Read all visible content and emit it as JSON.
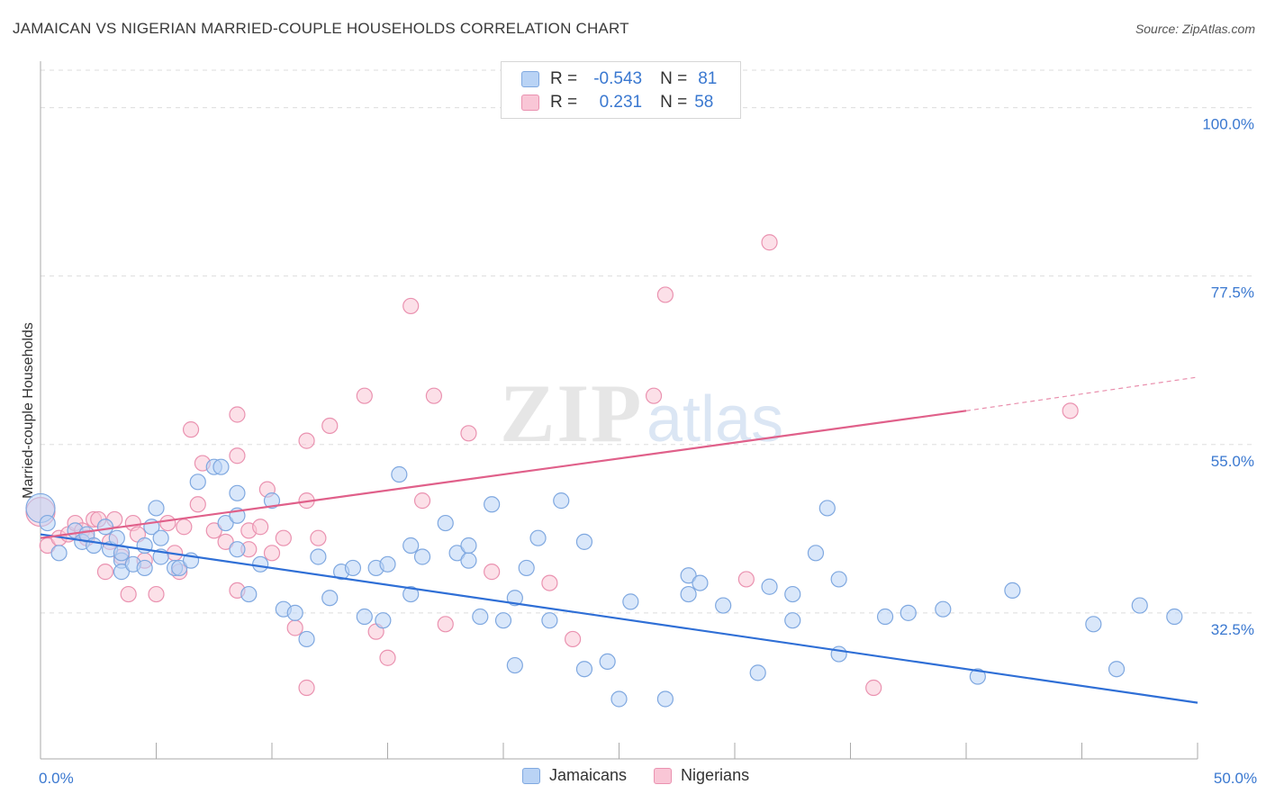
{
  "header": {
    "title": "JAMAICAN VS NIGERIAN MARRIED-COUPLE HOUSEHOLDS CORRELATION CHART",
    "source": "Source: ZipAtlas.com"
  },
  "watermark": {
    "zip": "ZIP",
    "atlas": "atlas"
  },
  "legend": {
    "r_label": "R =",
    "n_label": "N =",
    "rows": [
      {
        "r": "-0.543",
        "n": "81"
      },
      {
        "r": "0.231",
        "n": "58"
      }
    ]
  },
  "bottom_legend": {
    "items": [
      "Jamaicans",
      "Nigerians"
    ]
  },
  "colors": {
    "blue_fill": "#b9d3f5",
    "blue_stroke": "#7fa8e0",
    "blue_line": "#2f6fd6",
    "pink_fill": "#f9c6d6",
    "pink_stroke": "#ea92b0",
    "pink_line": "#e0608a",
    "tick_text": "#3a78d0",
    "grid": "#dddddd"
  },
  "chart_data": {
    "type": "scatter",
    "title": "JAMAICAN VS NIGERIAN MARRIED-COUPLE HOUSEHOLDS CORRELATION CHART",
    "xlabel": "",
    "ylabel": "Married-couple Households",
    "xlim": [
      0,
      50
    ],
    "ylim": [
      13,
      105
    ],
    "x_tick_labels": [
      {
        "value": 0,
        "label": "0.0%"
      },
      {
        "value": 50,
        "label": "50.0%"
      }
    ],
    "y_ticks": [
      {
        "value": 100,
        "label": "100.0%"
      },
      {
        "value": 77.5,
        "label": "77.5%"
      },
      {
        "value": 55,
        "label": "55.0%"
      },
      {
        "value": 32.5,
        "label": "32.5%"
      }
    ],
    "x_minor_ticks": [
      0,
      5,
      10,
      15,
      20,
      25,
      30,
      35,
      40,
      45,
      50
    ],
    "grid": true,
    "legend_position": "top-center",
    "series": [
      {
        "name": "Jamaicans",
        "color": "#b9d3f5",
        "trend": {
          "x0": 0,
          "y0": 43,
          "x1": 50,
          "y1": 20.5,
          "style": "solid"
        },
        "points": [
          [
            0.0,
            46.5
          ],
          [
            0.3,
            44.5
          ],
          [
            0.8,
            40.5
          ],
          [
            1.5,
            43.5
          ],
          [
            1.8,
            42.0
          ],
          [
            2.0,
            43.0
          ],
          [
            2.3,
            41.5
          ],
          [
            2.8,
            44.0
          ],
          [
            3.0,
            41.0
          ],
          [
            3.3,
            42.5
          ],
          [
            3.5,
            39.5
          ],
          [
            3.5,
            40.5
          ],
          [
            3.5,
            38.0
          ],
          [
            4.0,
            39.0
          ],
          [
            4.5,
            41.5
          ],
          [
            4.5,
            38.5
          ],
          [
            4.8,
            44.0
          ],
          [
            5.0,
            46.5
          ],
          [
            5.2,
            42.5
          ],
          [
            5.2,
            40.0
          ],
          [
            5.8,
            38.5
          ],
          [
            6.0,
            38.5
          ],
          [
            6.5,
            39.5
          ],
          [
            6.8,
            50.0
          ],
          [
            7.5,
            52.0
          ],
          [
            7.8,
            52.0
          ],
          [
            8.0,
            44.5
          ],
          [
            8.5,
            41.0
          ],
          [
            8.5,
            48.5
          ],
          [
            8.5,
            45.5
          ],
          [
            9.0,
            35.0
          ],
          [
            9.5,
            39.0
          ],
          [
            10.0,
            47.5
          ],
          [
            10.5,
            33.0
          ],
          [
            11.0,
            32.5
          ],
          [
            11.5,
            29.0
          ],
          [
            12.0,
            40.0
          ],
          [
            12.5,
            34.5
          ],
          [
            13.0,
            38.0
          ],
          [
            13.5,
            38.5
          ],
          [
            14.0,
            32.0
          ],
          [
            14.5,
            38.5
          ],
          [
            14.8,
            31.5
          ],
          [
            15.0,
            39.0
          ],
          [
            15.5,
            51.0
          ],
          [
            16.0,
            35.0
          ],
          [
            16.0,
            41.5
          ],
          [
            16.5,
            40.0
          ],
          [
            17.5,
            44.5
          ],
          [
            18.0,
            40.5
          ],
          [
            18.5,
            39.5
          ],
          [
            18.5,
            41.5
          ],
          [
            19.0,
            32.0
          ],
          [
            19.5,
            47.0
          ],
          [
            20.0,
            31.5
          ],
          [
            20.5,
            25.5
          ],
          [
            20.5,
            34.5
          ],
          [
            21.0,
            38.5
          ],
          [
            21.5,
            42.5
          ],
          [
            22.0,
            31.5
          ],
          [
            22.5,
            47.5
          ],
          [
            23.5,
            42.0
          ],
          [
            23.5,
            25.0
          ],
          [
            24.5,
            26.0
          ],
          [
            25.0,
            21.0
          ],
          [
            25.5,
            34.0
          ],
          [
            27.0,
            21.0
          ],
          [
            28.0,
            35.0
          ],
          [
            28.0,
            37.5
          ],
          [
            28.5,
            36.5
          ],
          [
            29.5,
            33.5
          ],
          [
            31.0,
            24.5
          ],
          [
            31.5,
            36.0
          ],
          [
            32.5,
            35.0
          ],
          [
            32.5,
            31.5
          ],
          [
            33.5,
            40.5
          ],
          [
            34.5,
            27.0
          ],
          [
            34.5,
            37.0
          ],
          [
            34.0,
            46.5
          ],
          [
            36.5,
            32.0
          ],
          [
            37.5,
            32.5
          ],
          [
            39.0,
            33.0
          ],
          [
            40.5,
            24.0
          ],
          [
            42.0,
            35.5
          ],
          [
            45.5,
            31.0
          ],
          [
            46.5,
            25.0
          ],
          [
            47.5,
            33.5
          ],
          [
            49.0,
            32.0
          ]
        ]
      },
      {
        "name": "Nigerians",
        "color": "#f9c6d6",
        "trend": {
          "x0": 0,
          "y0": 42.5,
          "x1": 40,
          "y1": 59.5,
          "style": "solid",
          "dashed_to": {
            "x": 50,
            "y": 64
          }
        },
        "points": [
          [
            0.0,
            46.0
          ],
          [
            0.3,
            41.5
          ],
          [
            0.8,
            42.5
          ],
          [
            1.2,
            43.0
          ],
          [
            1.5,
            44.5
          ],
          [
            1.8,
            43.5
          ],
          [
            2.0,
            42.5
          ],
          [
            2.3,
            45.0
          ],
          [
            2.5,
            45.0
          ],
          [
            2.8,
            38.0
          ],
          [
            3.0,
            42.0
          ],
          [
            3.2,
            45.0
          ],
          [
            3.5,
            40.0
          ],
          [
            3.8,
            35.0
          ],
          [
            4.0,
            44.5
          ],
          [
            4.2,
            43.0
          ],
          [
            4.5,
            39.5
          ],
          [
            5.0,
            35.0
          ],
          [
            5.5,
            44.5
          ],
          [
            5.8,
            40.5
          ],
          [
            6.0,
            38.0
          ],
          [
            6.2,
            44.0
          ],
          [
            6.5,
            57.0
          ],
          [
            6.8,
            47.0
          ],
          [
            7.0,
            52.5
          ],
          [
            7.5,
            43.5
          ],
          [
            8.0,
            42.0
          ],
          [
            8.5,
            35.5
          ],
          [
            8.5,
            59.0
          ],
          [
            8.5,
            53.5
          ],
          [
            9.0,
            41.0
          ],
          [
            9.0,
            43.5
          ],
          [
            9.5,
            44.0
          ],
          [
            9.8,
            49.0
          ],
          [
            10.0,
            40.5
          ],
          [
            10.5,
            42.5
          ],
          [
            11.0,
            30.5
          ],
          [
            11.5,
            47.5
          ],
          [
            11.5,
            55.5
          ],
          [
            11.5,
            22.5
          ],
          [
            12.0,
            42.5
          ],
          [
            12.5,
            57.5
          ],
          [
            14.0,
            61.5
          ],
          [
            14.5,
            30.0
          ],
          [
            15.0,
            26.5
          ],
          [
            16.0,
            73.5
          ],
          [
            16.5,
            47.5
          ],
          [
            17.0,
            61.5
          ],
          [
            17.5,
            31.0
          ],
          [
            18.5,
            56.5
          ],
          [
            19.5,
            38.0
          ],
          [
            22.0,
            36.5
          ],
          [
            23.0,
            29.0
          ],
          [
            26.5,
            61.5
          ],
          [
            27.0,
            75.0
          ],
          [
            30.5,
            37.0
          ],
          [
            31.5,
            82.0
          ],
          [
            36.0,
            22.5
          ],
          [
            44.5,
            59.5
          ]
        ]
      }
    ]
  }
}
